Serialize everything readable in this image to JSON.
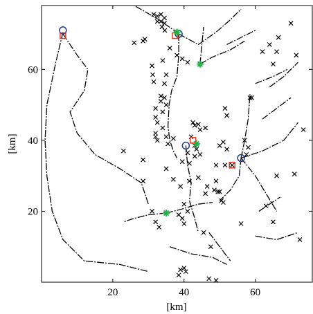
{
  "chart_data": {
    "type": "scatter",
    "title": "",
    "xlabel": "[km]",
    "ylabel": "[km]",
    "xlim": [
      0,
      76
    ],
    "ylim": [
      0,
      78
    ],
    "xticks": [
      20,
      40,
      60
    ],
    "yticks": [
      20,
      40,
      60
    ],
    "grid": false,
    "legend": "none",
    "colors": {
      "cross": "#000000",
      "circle": "#1f3a93",
      "square": "#e03a1e",
      "star": "#27b04b",
      "line": "#000000"
    },
    "series": [
      {
        "marker": "x",
        "points": [
          [
            31.5,
            75.5
          ],
          [
            32.5,
            75
          ],
          [
            33.5,
            75.5
          ],
          [
            34.5,
            74.5
          ],
          [
            32.5,
            73.5
          ],
          [
            33.5,
            73.5
          ],
          [
            34.5,
            73
          ],
          [
            33.8,
            72
          ],
          [
            34.6,
            71
          ],
          [
            29,
            68.5
          ],
          [
            28.5,
            68
          ],
          [
            26,
            67.5
          ],
          [
            36,
            66
          ],
          [
            38,
            64
          ],
          [
            39.5,
            63
          ],
          [
            41,
            62
          ],
          [
            34,
            62.5
          ],
          [
            35,
            58.5
          ],
          [
            31,
            61
          ],
          [
            31.2,
            58.5
          ],
          [
            31.5,
            56.5
          ],
          [
            34.5,
            56
          ],
          [
            33.5,
            52.5
          ],
          [
            34.5,
            52
          ],
          [
            33.5,
            51
          ],
          [
            35,
            50
          ],
          [
            32,
            49
          ],
          [
            34,
            48
          ],
          [
            32,
            46.5
          ],
          [
            32.5,
            45
          ],
          [
            34,
            43.5
          ],
          [
            32,
            42
          ],
          [
            32,
            41
          ],
          [
            32.5,
            40
          ],
          [
            35,
            41
          ],
          [
            35.5,
            39
          ],
          [
            37,
            40.5
          ],
          [
            42.5,
            45
          ],
          [
            43,
            44.2
          ],
          [
            44,
            44.5
          ],
          [
            44.5,
            43
          ],
          [
            46,
            43.5
          ],
          [
            42,
            41
          ],
          [
            43,
            38.5
          ],
          [
            43.5,
            37.5
          ],
          [
            44.5,
            36
          ],
          [
            43,
            35.5
          ],
          [
            41,
            36.5
          ],
          [
            41.5,
            33.5
          ],
          [
            39.5,
            34
          ],
          [
            35,
            32
          ],
          [
            28.5,
            34.5
          ],
          [
            23,
            37
          ],
          [
            51.5,
            49
          ],
          [
            52,
            47
          ],
          [
            51,
            39.5
          ],
          [
            50,
            38.5
          ],
          [
            52,
            37.5
          ],
          [
            49,
            33
          ],
          [
            51.5,
            33
          ],
          [
            53.5,
            33
          ],
          [
            57,
            40
          ],
          [
            58,
            38
          ],
          [
            57.5,
            36
          ],
          [
            58.5,
            52
          ],
          [
            59,
            52
          ],
          [
            62,
            65
          ],
          [
            65,
            61.5
          ],
          [
            66,
            65
          ],
          [
            64,
            67
          ],
          [
            66.5,
            69
          ],
          [
            70,
            73
          ],
          [
            71.5,
            64
          ],
          [
            66,
            30
          ],
          [
            71,
            30.5
          ],
          [
            73.5,
            43
          ],
          [
            72.5,
            12
          ],
          [
            56,
            16.5
          ],
          [
            47.5,
            10
          ],
          [
            45.5,
            14
          ],
          [
            40,
            22
          ],
          [
            39,
            27
          ],
          [
            38.5,
            19
          ],
          [
            41.5,
            28.5
          ],
          [
            46.5,
            27
          ],
          [
            46,
            25
          ],
          [
            48.5,
            26
          ],
          [
            49,
            28.5
          ],
          [
            49.5,
            25.5
          ],
          [
            50,
            25.5
          ],
          [
            50.5,
            23
          ],
          [
            51,
            22.5
          ],
          [
            44,
            29.5
          ],
          [
            31,
            20
          ],
          [
            32,
            17
          ],
          [
            33,
            15.5
          ],
          [
            39.5,
            18
          ],
          [
            40,
            16.5
          ],
          [
            41,
            20
          ],
          [
            38.5,
            2
          ],
          [
            39,
            3.5
          ],
          [
            40,
            4
          ],
          [
            40.5,
            3
          ],
          [
            47,
            1
          ],
          [
            49,
            0.5
          ],
          [
            28.5,
            28.5
          ],
          [
            37,
            29
          ],
          [
            65,
            17
          ],
          [
            63,
            21.5
          ]
        ]
      },
      {
        "marker": "o",
        "points": [
          [
            6,
            71
          ],
          [
            38.5,
            70
          ],
          [
            40.5,
            38.5
          ],
          [
            56,
            35
          ]
        ]
      },
      {
        "marker": "s",
        "points": [
          [
            6,
            69.5
          ],
          [
            37.5,
            69.5
          ],
          [
            42.5,
            40
          ],
          [
            53.5,
            33
          ]
        ]
      },
      {
        "marker": "*",
        "points": [
          [
            38,
            70.5
          ],
          [
            44.5,
            61.5
          ],
          [
            43.5,
            39
          ],
          [
            35,
            19.5
          ]
        ]
      }
    ],
    "lines": [
      [
        [
          6,
          70.5
        ],
        [
          4,
          62
        ],
        [
          1.5,
          50
        ],
        [
          1,
          40
        ],
        [
          1.5,
          30
        ],
        [
          3,
          20
        ],
        [
          6,
          12
        ],
        [
          12,
          6
        ],
        [
          22,
          5
        ],
        [
          30,
          3
        ]
      ],
      [
        [
          6,
          70
        ],
        [
          10,
          64
        ],
        [
          13,
          60
        ],
        [
          12,
          54
        ],
        [
          8,
          48
        ],
        [
          10,
          42
        ],
        [
          15,
          36
        ],
        [
          22,
          32
        ],
        [
          28,
          28
        ],
        [
          30,
          22
        ]
      ],
      [
        [
          38.5,
          70
        ],
        [
          33,
          74
        ],
        [
          26,
          78
        ]
      ],
      [
        [
          38.5,
          70
        ],
        [
          44,
          67
        ],
        [
          49,
          70.5
        ],
        [
          53,
          74
        ],
        [
          56,
          77
        ]
      ],
      [
        [
          38.5,
          70
        ],
        [
          38.5,
          64
        ],
        [
          38,
          58
        ],
        [
          36.5,
          54
        ],
        [
          35.8,
          50
        ],
        [
          35.5,
          44
        ],
        [
          36,
          40
        ],
        [
          37,
          37
        ],
        [
          38,
          35
        ]
      ],
      [
        [
          44.5,
          61.5
        ],
        [
          45,
          67
        ],
        [
          45.5,
          72
        ]
      ],
      [
        [
          44.5,
          61.5
        ],
        [
          48,
          63.5
        ],
        [
          53,
          65.5
        ],
        [
          57,
          68
        ]
      ],
      [
        [
          40.5,
          38.5
        ],
        [
          41,
          33
        ],
        [
          42,
          28
        ],
        [
          41.5,
          23
        ],
        [
          43,
          18
        ],
        [
          44,
          14
        ]
      ],
      [
        [
          56,
          35
        ],
        [
          55.5,
          30
        ],
        [
          53,
          26
        ],
        [
          50,
          23
        ]
      ],
      [
        [
          56,
          35
        ],
        [
          62,
          37
        ],
        [
          68,
          40
        ],
        [
          72,
          45
        ]
      ],
      [
        [
          56,
          35
        ],
        [
          60,
          30
        ],
        [
          63,
          25
        ],
        [
          66,
          20
        ]
      ],
      [
        [
          56,
          35
        ],
        [
          57,
          40
        ],
        [
          58,
          46
        ],
        [
          58.5,
          53
        ]
      ],
      [
        [
          35,
          19.5
        ],
        [
          30,
          19
        ],
        [
          26,
          18
        ],
        [
          23,
          17
        ]
      ],
      [
        [
          35,
          19.5
        ],
        [
          39,
          20.5
        ],
        [
          44,
          22
        ],
        [
          48,
          22.5
        ]
      ],
      [
        [
          62,
          46
        ],
        [
          66,
          49
        ],
        [
          70,
          52
        ]
      ],
      [
        [
          64,
          55
        ],
        [
          68,
          58
        ],
        [
          72,
          62
        ]
      ],
      [
        [
          60,
          56
        ],
        [
          65,
          58
        ],
        [
          69,
          60
        ]
      ],
      [
        [
          52,
          67
        ],
        [
          56,
          69
        ],
        [
          60,
          71
        ]
      ],
      [
        [
          36,
          10
        ],
        [
          42,
          8
        ],
        [
          48,
          7
        ],
        [
          52,
          5
        ]
      ],
      [
        [
          47,
          14
        ],
        [
          50,
          10
        ],
        [
          53,
          6
        ]
      ],
      [
        [
          60,
          13
        ],
        [
          66,
          12
        ],
        [
          72,
          14
        ]
      ],
      [
        [
          61,
          20
        ],
        [
          67,
          24
        ]
      ]
    ]
  }
}
